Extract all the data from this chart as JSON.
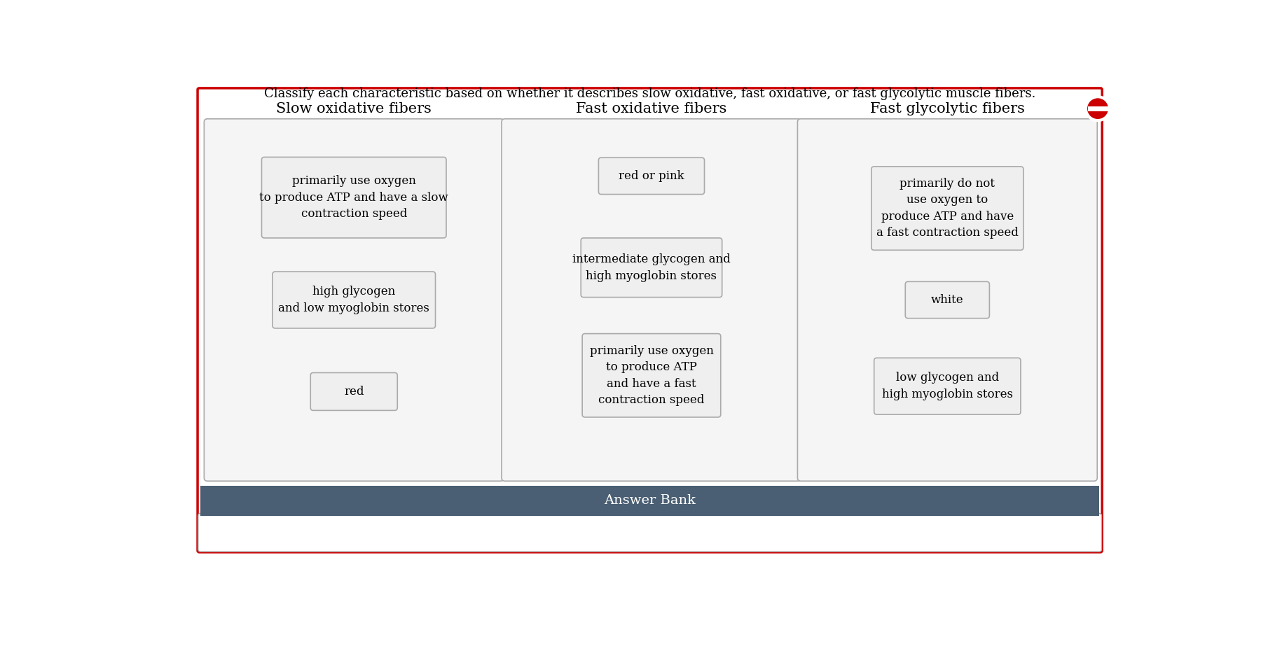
{
  "title": "Classify each characteristic based on whether it describes slow oxidative, fast oxidative, or fast glycolytic muscle fibers.",
  "title_fontsize": 13,
  "outer_border_color": "#cc0000",
  "outer_border_linewidth": 2.5,
  "column_headers": [
    "Slow oxidative fibers",
    "Fast oxidative fibers",
    "Fast glycolytic fibers"
  ],
  "column_header_fontsize": 15,
  "col1_items": [
    "primarily use oxygen\nto produce ATP and have a slow\ncontraction speed",
    "high glycogen\nand low myoglobin stores",
    "red"
  ],
  "col2_items": [
    "red or pink",
    "intermediate glycogen and\nhigh myoglobin stores",
    "primarily use oxygen\nto produce ATP\nand have a fast\ncontraction speed"
  ],
  "col3_items": [
    "primarily do not\nuse oxygen to\nproduce ATP and have\na fast contraction speed",
    "white",
    "low glycogen and\nhigh myoglobin stores"
  ],
  "answer_bank_bg": "#4a5f73",
  "answer_bank_text": "Answer Bank",
  "answer_bank_text_color": "#ffffff",
  "answer_bank_fontsize": 14,
  "box_border_color": "#aaaaaa",
  "box_bg_color": "#efefef",
  "column_box_bg": "#f5f5f5",
  "column_box_border": "#aaaaaa",
  "icon_color": "#cc0000",
  "bg_color": "#ffffff",
  "item_fontsize": 12
}
